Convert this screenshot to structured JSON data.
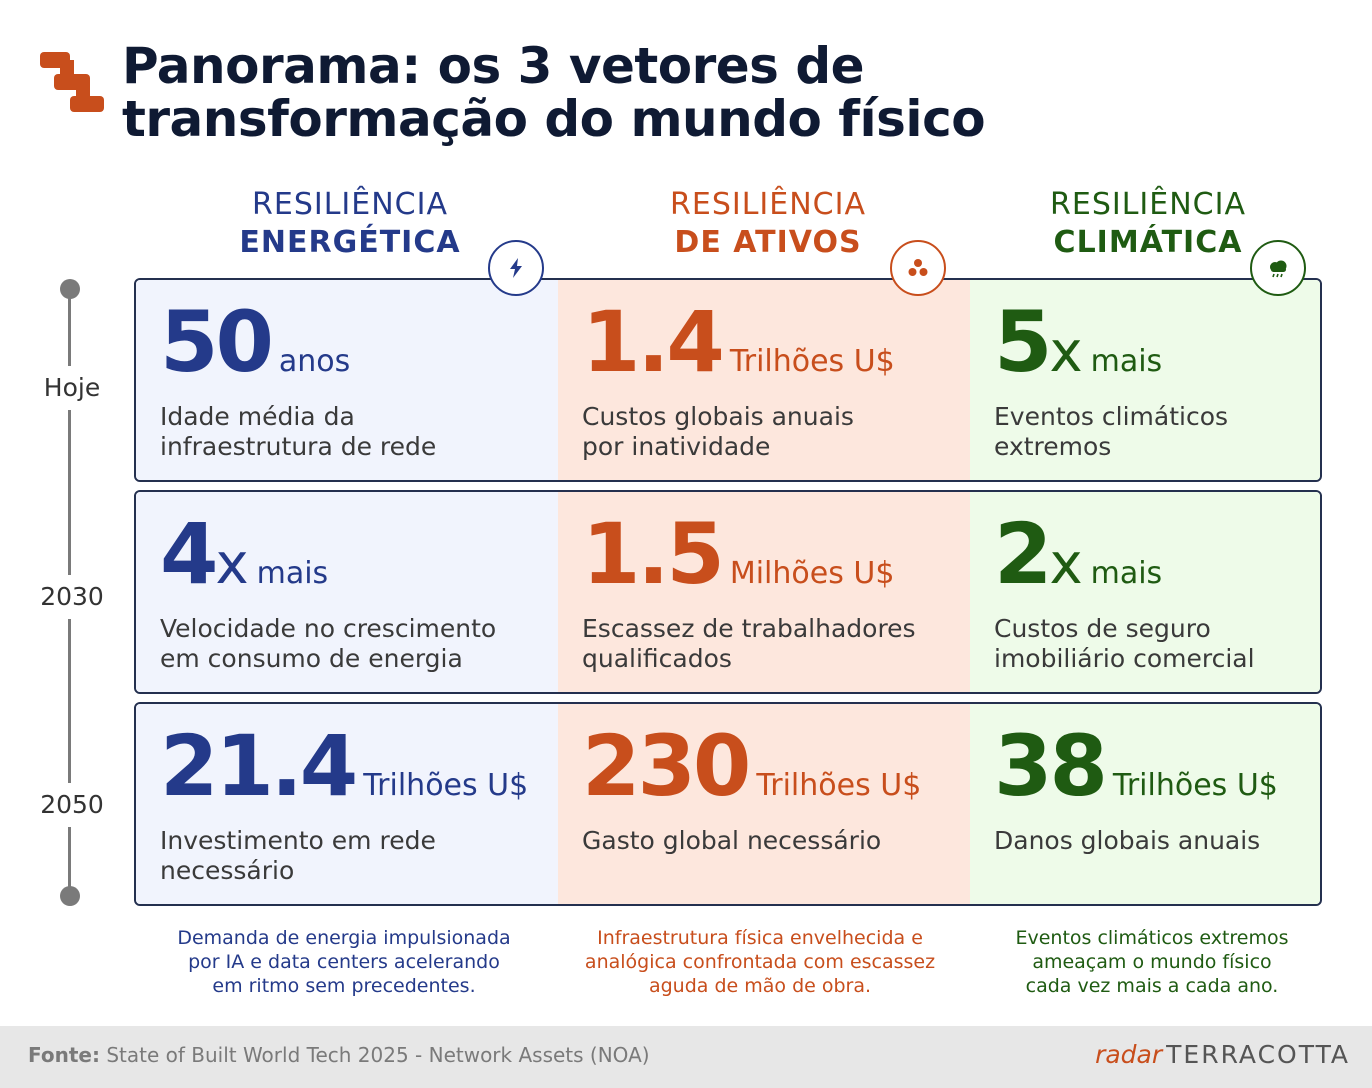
{
  "title": {
    "line1": "Panorama: os 3 vetores de",
    "line2": "transformação do mundo físico"
  },
  "columns": [
    {
      "id": "energy",
      "label_line1": "RESILIÊNCIA",
      "label_line2": "ENERGÉTICA",
      "icon": "lightning-bolt-icon",
      "color": "#243a8a"
    },
    {
      "id": "assets",
      "label_line1": "RESILIÊNCIA",
      "label_line2": "DE ATIVOS",
      "icon": "three-dots-icon",
      "color": "#c84e1c"
    },
    {
      "id": "climate",
      "label_line1": "RESILIÊNCIA",
      "label_line2": "CLIMÁTICA",
      "icon": "rain-cloud-icon",
      "color": "#1f5b12"
    }
  ],
  "timeline": [
    "Hoje",
    "2030",
    "2050"
  ],
  "rows": [
    {
      "energy": {
        "value": "50",
        "suffix": "",
        "unit": "anos",
        "desc_line1": "Idade média da",
        "desc_line2": "infraestrutura de rede"
      },
      "assets": {
        "value": "1.4",
        "suffix": "",
        "unit": "Trilhões U$",
        "desc_line1": "Custos globais anuais",
        "desc_line2": "por inatividade"
      },
      "climate": {
        "value": "5",
        "suffix": "x",
        "unit": "mais",
        "desc_line1": "Eventos climáticos",
        "desc_line2": "extremos"
      }
    },
    {
      "energy": {
        "value": "4",
        "suffix": "x",
        "unit": "mais",
        "desc_line1": "Velocidade no crescimento",
        "desc_line2": "em consumo de energia"
      },
      "assets": {
        "value": "1.5",
        "suffix": "",
        "unit": "Milhões U$",
        "desc_line1": "Escassez de trabalhadores",
        "desc_line2": "qualificados"
      },
      "climate": {
        "value": "2",
        "suffix": "x",
        "unit": "mais",
        "desc_line1": "Custos de seguro",
        "desc_line2": "imobiliário comercial"
      }
    },
    {
      "energy": {
        "value": "21.4",
        "suffix": "",
        "unit": "Trilhões U$",
        "desc_line1": "Investimento em rede",
        "desc_line2": "necessário"
      },
      "assets": {
        "value": "230",
        "suffix": "",
        "unit": "Trilhões U$",
        "desc_line1": "Gasto global necessário",
        "desc_line2": ""
      },
      "climate": {
        "value": "38",
        "suffix": "",
        "unit": "Trilhões U$",
        "desc_line1": "Danos globais anuais",
        "desc_line2": ""
      }
    }
  ],
  "notes": {
    "energy": [
      "Demanda de energia impulsionada",
      "por IA e data centers acelerando",
      "em ritmo sem precedentes."
    ],
    "assets": [
      "Infraestrutura física envelhecida e",
      "analógica confrontada com escassez",
      "aguda de mão de obra."
    ],
    "climate": [
      "Eventos climáticos extremos",
      "ameaçam o mundo físico",
      "cada vez mais a cada ano."
    ]
  },
  "footer": {
    "source_label": "Fonte:",
    "source_text": "State of Built World Tech 2025 - Network Assets (NOA)",
    "brand_radar": "radar",
    "brand_name": "TERRACOTTA"
  }
}
